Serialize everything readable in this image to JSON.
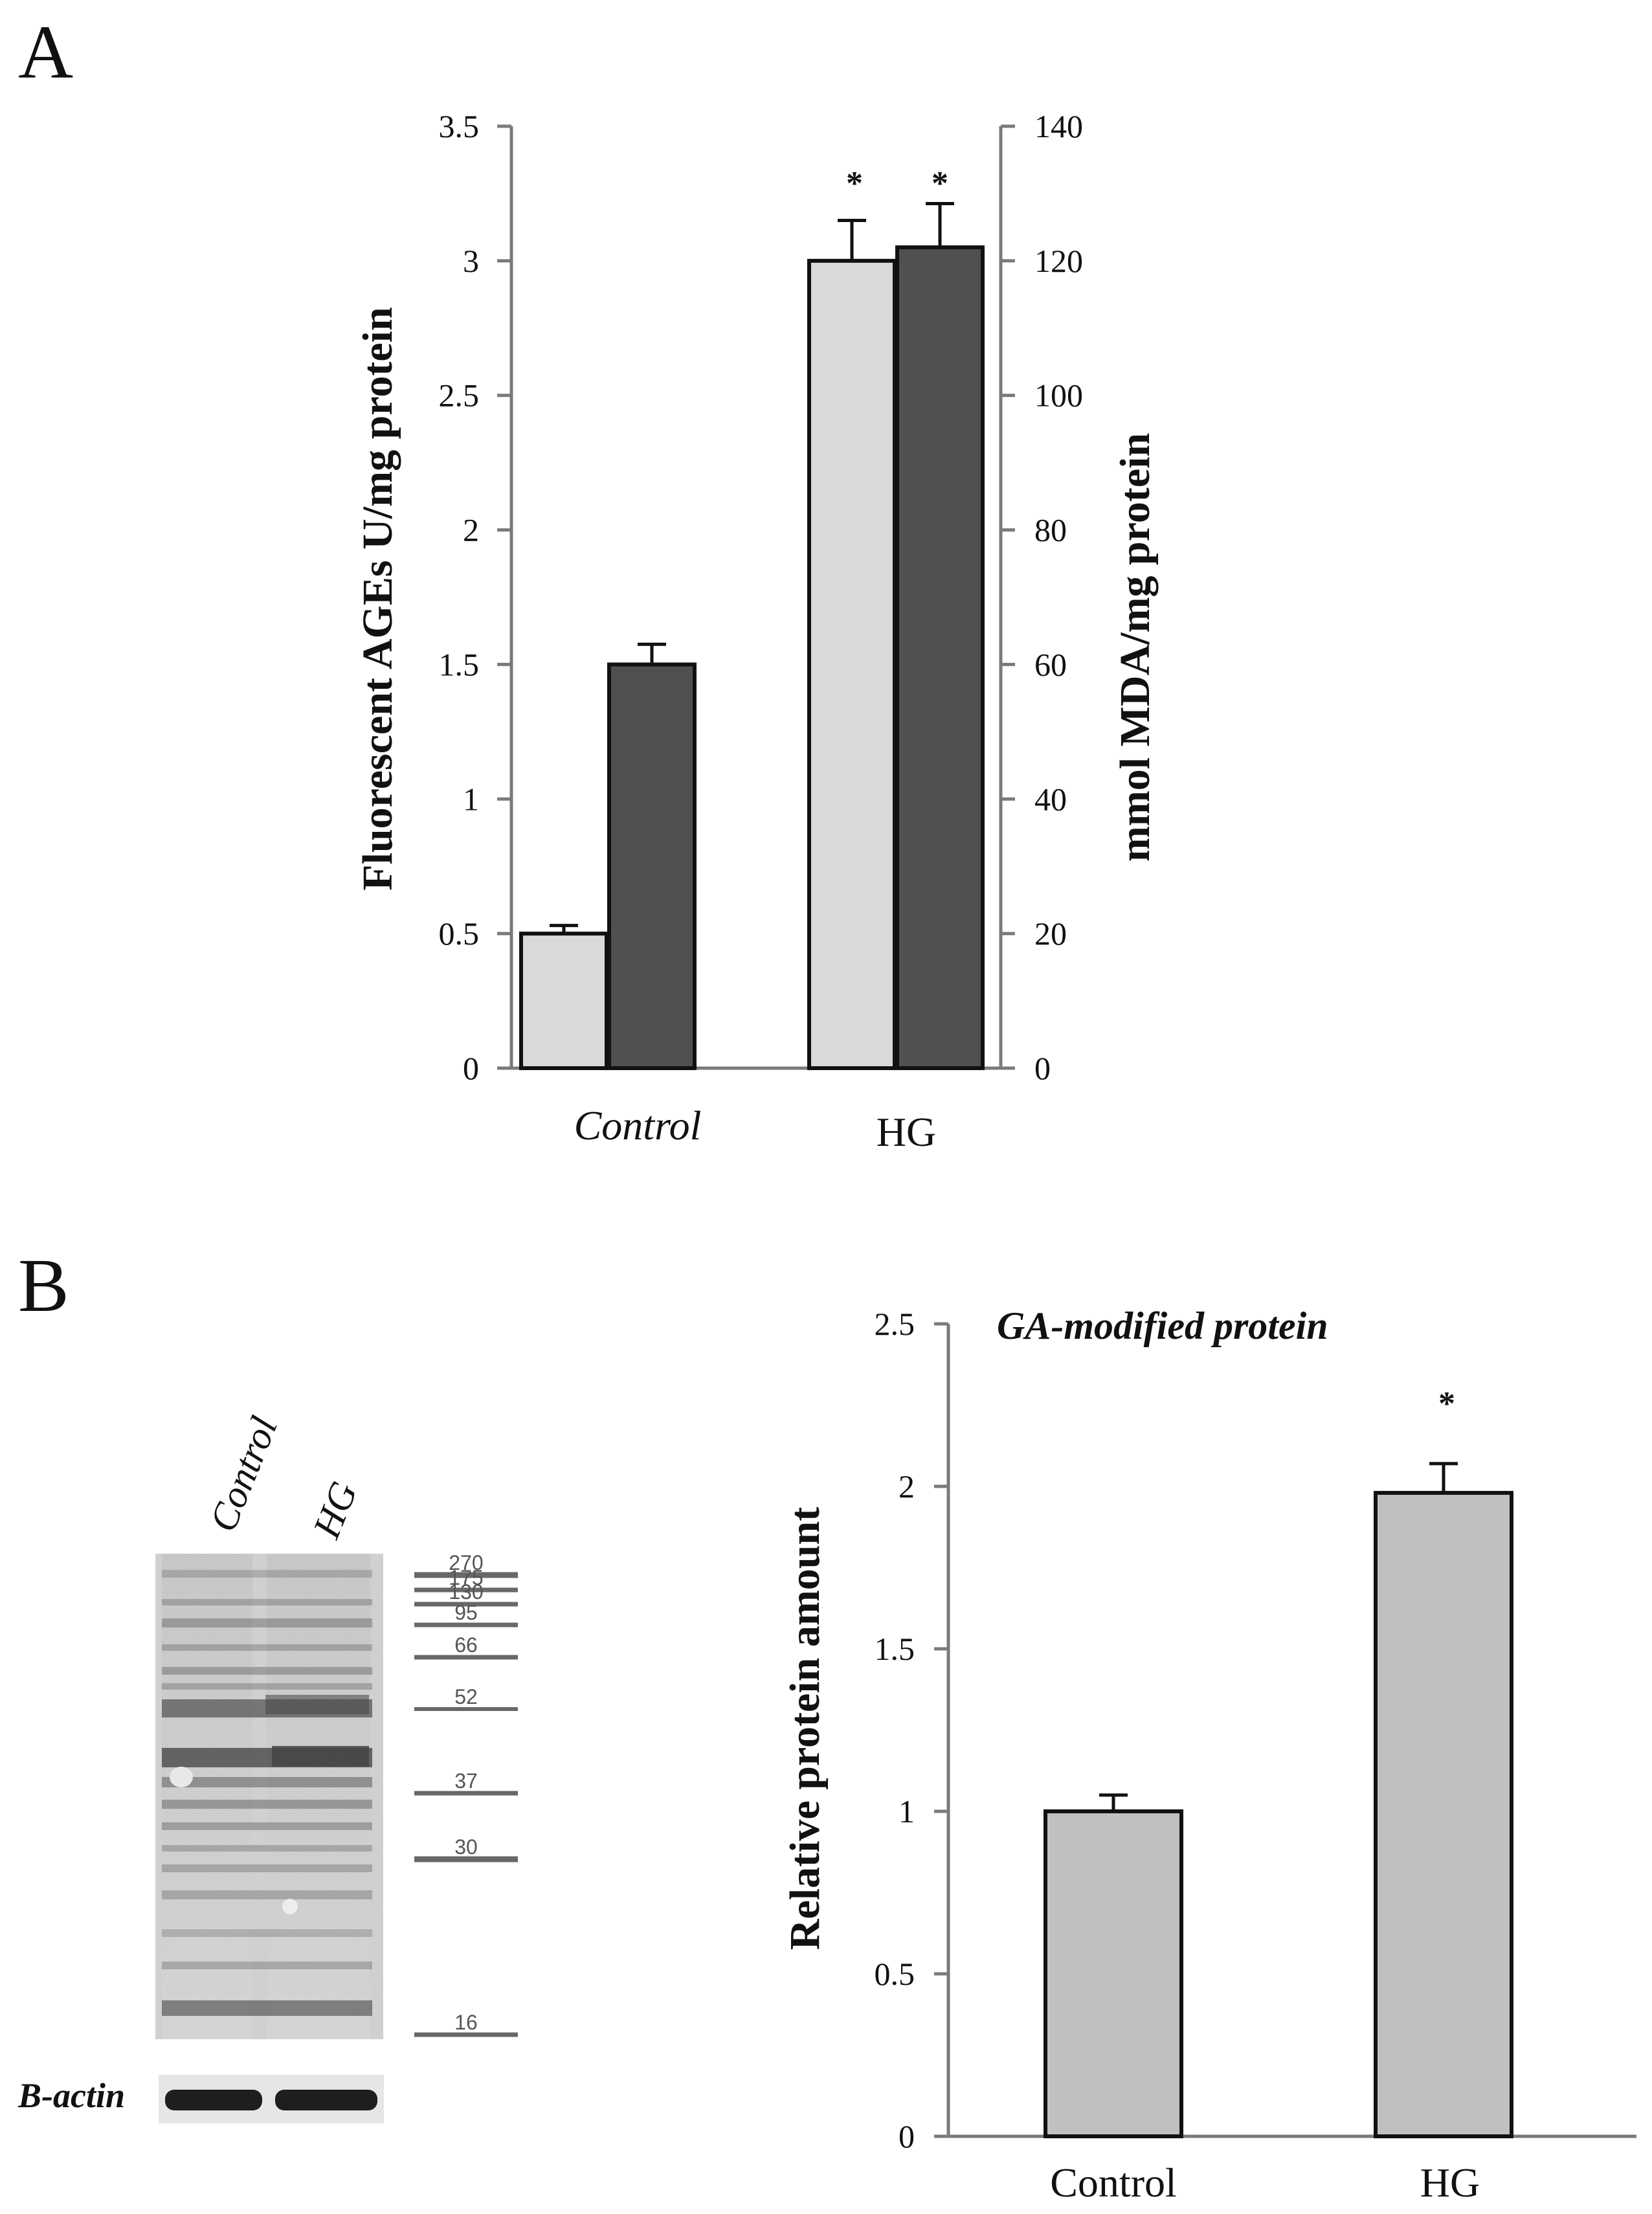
{
  "panels": {
    "a": {
      "letter": "A"
    },
    "b": {
      "letter": "B"
    }
  },
  "chart_data": [
    {
      "type": "bar",
      "panel": "A",
      "title": "",
      "categories": [
        "Control",
        "HG"
      ],
      "series": [
        {
          "name": "Fluorescent AGEs",
          "axis": "left",
          "color": "#d9d9d9",
          "values": [
            0.5,
            3.0
          ],
          "errors": [
            0.03,
            0.15
          ]
        },
        {
          "name": "MDA",
          "axis": "right",
          "color": "#505050",
          "values": [
            60,
            122
          ],
          "errors": [
            3,
            6.5
          ]
        }
      ],
      "significance": [
        "",
        "*"
      ],
      "ylabel": "Fluorescent AGEs U/mg protein",
      "ylabel_right": "mmol MDA/mg protein",
      "ylim": [
        0,
        3.5
      ],
      "ylim_right": [
        0,
        140
      ],
      "yticks": [
        "0",
        "0.5",
        "1",
        "1.5",
        "2",
        "2.5",
        "3",
        "3.5"
      ],
      "yticks_right": [
        "0",
        "20",
        "40",
        "60",
        "80",
        "100",
        "120",
        "140"
      ],
      "xlabel": ""
    },
    {
      "type": "bar",
      "panel": "B",
      "title": "GA-modified protein",
      "categories": [
        "Control",
        "HG"
      ],
      "series": [
        {
          "name": "Relative protein amount",
          "color": "#c0c0c0",
          "values": [
            1.0,
            1.98
          ],
          "errors": [
            0.05,
            0.09
          ]
        }
      ],
      "significance": [
        "",
        "*"
      ],
      "ylabel": "Relative protein amount",
      "ylim": [
        0,
        2.5
      ],
      "yticks": [
        "0",
        "0.5",
        "1",
        "1.5",
        "2",
        "2.5"
      ],
      "xlabel": ""
    }
  ],
  "blot": {
    "lanes": [
      "Control",
      "HG"
    ],
    "markers": [
      "270",
      "175",
      "130",
      "95",
      "66",
      "52",
      "37",
      "30",
      "16"
    ],
    "loading_control": "B-actin"
  }
}
